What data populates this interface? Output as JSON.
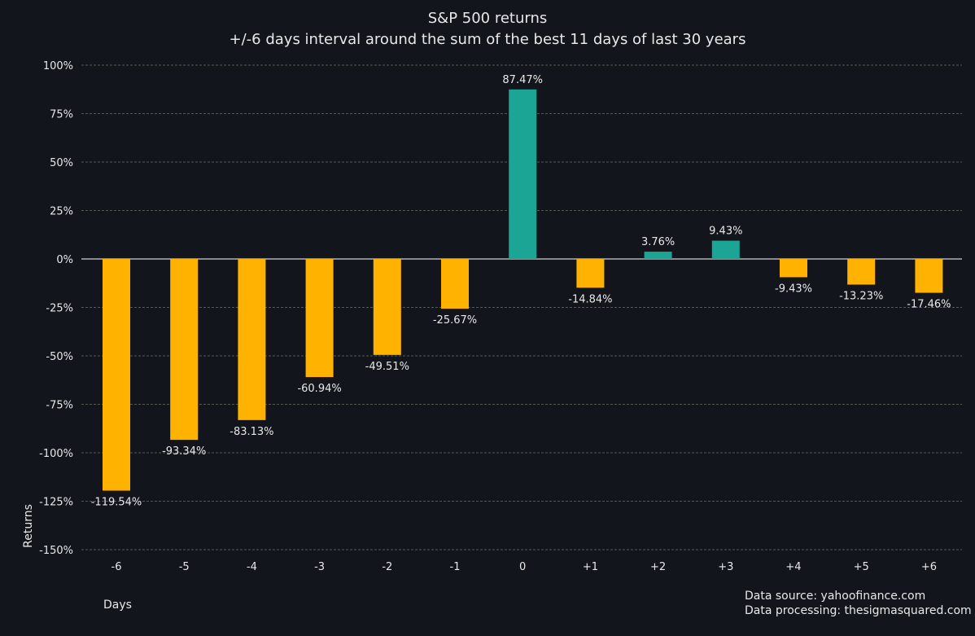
{
  "chart_data": {
    "type": "bar",
    "title": "S&P 500 returns",
    "subtitle": "+/-6 days interval around the sum of the best 11 days of last 30 years",
    "xlabel": "Days",
    "ylabel": "Returns",
    "categories": [
      "-6",
      "-5",
      "-4",
      "-3",
      "-2",
      "-1",
      "0",
      "+1",
      "+2",
      "+3",
      "+4",
      "+5",
      "+6"
    ],
    "values": [
      -119.54,
      -93.34,
      -83.13,
      -60.94,
      -49.51,
      -25.67,
      87.47,
      -14.84,
      3.76,
      9.43,
      -9.43,
      -13.23,
      -17.46
    ],
    "data_labels": [
      "-119.54%",
      "-93.34%",
      "-83.13%",
      "-60.94%",
      "-49.51%",
      "-25.67%",
      "87.47%",
      "-14.84%",
      "3.76%",
      "9.43%",
      "-9.43%",
      "-13.23%",
      "-17.46%"
    ],
    "ylim": [
      -150,
      100
    ],
    "yticks": [
      100,
      75,
      50,
      25,
      0,
      -25,
      -50,
      -75,
      -100,
      -125,
      -150
    ],
    "ytick_labels": [
      "100%",
      "75%",
      "50%",
      "25%",
      "0%",
      "-25%",
      "-50%",
      "-75%",
      "-100%",
      "-125%",
      "-150%"
    ],
    "grid": true,
    "colors": {
      "background": "#12161c",
      "negative": "#ffb300",
      "positive": "#1aa595",
      "grid": "#6b7060",
      "zero_line": "#ffffff",
      "text": "#e8e8e8"
    }
  },
  "footer": {
    "source": "Data source: yahoofinance.com",
    "processing": "Data processing: thesigmasquared.com"
  }
}
